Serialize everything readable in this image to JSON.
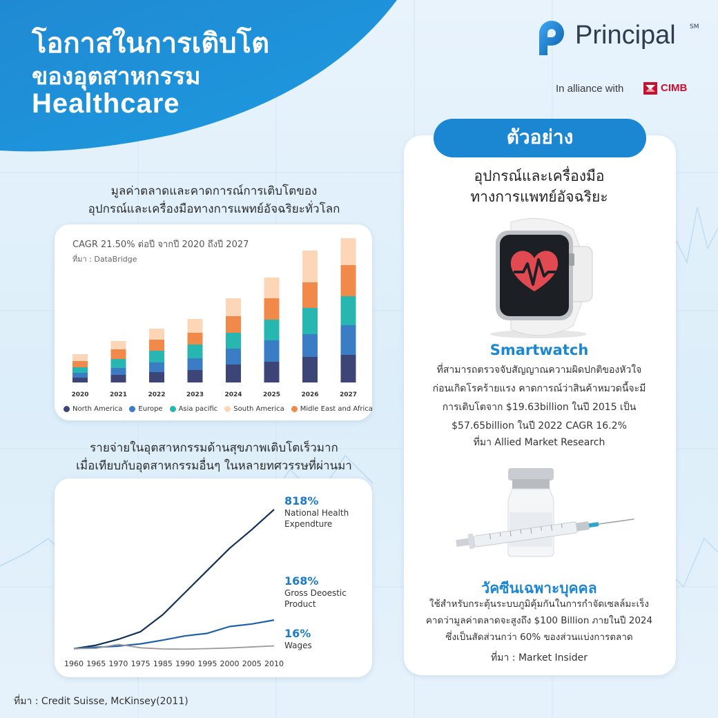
{
  "header": {
    "title_line1": "โอกาสในการเติบโต",
    "title_line2": "ของอุตสาหกรรม",
    "title_line3": "Healthcare"
  },
  "brand": {
    "name": "Principal",
    "trademark": "SM",
    "alliance_text": "In alliance with",
    "partner": "CIMB"
  },
  "colors": {
    "primary_blue": "#1b86d1",
    "dark_navy": "#3d4577",
    "cimb_red": "#c8102e"
  },
  "section1": {
    "title_line1": "มูลค่าตลาดและคาดการณ์การเติบโตของ",
    "title_line2": "อุปกรณ์และเครื่องมือทางการแพทย์อัจฉริยะทั่วโลก",
    "cagr_note": "CAGR 21.50% ต่อปี จากปี 2020 ถึงปี 2027",
    "source": "ที่มา : DataBridge"
  },
  "section2": {
    "title_line1": "รายจ่ายในอุตสาหกรรมด้านสุขภาพเติบโตเร็วมาก",
    "title_line2": "เมื่อเทียบกับอุตสาหกรรมอื่นๆ ในหลายทศวรรษที่ผ่านมา"
  },
  "chart_data": [
    {
      "type": "bar",
      "stacked": true,
      "categories": [
        "2020",
        "2021",
        "2022",
        "2023",
        "2024",
        "2025",
        "2026",
        "2027"
      ],
      "series": [
        {
          "name": "North America",
          "color": "#3d4577",
          "values": [
            7,
            11,
            15,
            18,
            26,
            30,
            37,
            40
          ]
        },
        {
          "name": "Europe",
          "color": "#3a7dc4",
          "values": [
            7,
            10,
            14,
            17,
            23,
            31,
            33,
            43
          ]
        },
        {
          "name": "Asia pacific",
          "color": "#27b6b0",
          "values": [
            8,
            13,
            17,
            20,
            23,
            30,
            38,
            42
          ]
        },
        {
          "name": "Midle East and Africa",
          "color": "#f0894a",
          "values": [
            9,
            14,
            16,
            17,
            24,
            31,
            37,
            45
          ]
        },
        {
          "name": "South America",
          "color": "#fdd6b7",
          "values": [
            10,
            12,
            16,
            20,
            26,
            30,
            46,
            39
          ]
        }
      ],
      "legend_order": [
        "North America",
        "Europe",
        "Asia pacific",
        "South America",
        "Midle East and Africa"
      ],
      "legend_position": "bottom",
      "grid": false
    },
    {
      "type": "line",
      "x_ticks": [
        "1960",
        "1965",
        "1970",
        "1975",
        "1985",
        "1990",
        "1995",
        "2000",
        "2005",
        "2010"
      ],
      "series": [
        {
          "name": "National Health Expendture",
          "final_label": "818%",
          "color": "#10305a",
          "x": [
            "1960",
            "1965",
            "1970",
            "1975",
            "1985",
            "1990",
            "1995",
            "2000",
            "2005",
            "2010"
          ],
          "y": [
            0,
            20,
            55,
            100,
            200,
            330,
            460,
            590,
            700,
            818
          ]
        },
        {
          "name": "Gross Deoestic Product",
          "final_label": "168%",
          "color": "#1e5fa8",
          "x": [
            "1960",
            "1965",
            "1970",
            "1975",
            "1985",
            "1990",
            "1995",
            "2000",
            "2005",
            "2010"
          ],
          "y": [
            0,
            8,
            15,
            28,
            50,
            75,
            90,
            130,
            145,
            168
          ]
        },
        {
          "name": "Wages",
          "final_label": "16%",
          "color": "#9a9a9a",
          "x": [
            "1960",
            "1965",
            "1970",
            "1975",
            "1985",
            "1990",
            "1995",
            "2000",
            "2005",
            "2010"
          ],
          "y": [
            0,
            2,
            25,
            5,
            -2,
            -3,
            0,
            4,
            10,
            16
          ]
        }
      ],
      "grid": false
    }
  ],
  "example": {
    "badge": "ตัวอย่าง",
    "heading_line1": "อุปกรณ์และเครื่องมือ",
    "heading_line2": "ทางการแพทย์อัจฉริยะ",
    "item1": {
      "name": "Smartwatch",
      "desc_line1": "ที่สามารถตรวจจับสัญญาณความผิดปกติของหัวใจ",
      "desc_line2": "ก่อนเกิดโรคร้ายแรง คาดการณ์ว่าสินค้าหมวดนี้จะมี",
      "desc_line3": "การเติบโตจาก $19.63billion ในปี 2015 เป็น",
      "desc_line4": "$57.65billion ในปี 2022 CAGR 16.2%",
      "source": "ที่มา Allied Market Research"
    },
    "item2": {
      "name": "วัคซีนเฉพาะบุคคล",
      "desc_line1": "ใช้สำหรับกระตุ้นระบบภูมิคุ้มกันในการกำจัดเซลล์มะเร็ง",
      "desc_line2": "คาดว่ามูลค่าตลาดจะสูงถึง $100 Billion ภายในปี 2024",
      "desc_line3": "ซึ่งเป็นสัดส่วนกว่า 60% ของส่วนแบ่งการตลาด",
      "source": "ที่มา : Market Insider"
    }
  },
  "footer": {
    "source": "ที่มา : Credit Suisse, McKinsey(2011)"
  }
}
